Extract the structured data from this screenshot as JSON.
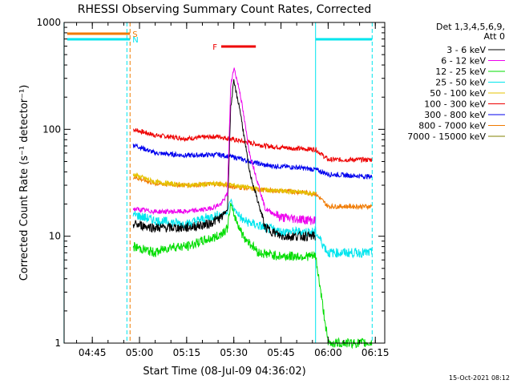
{
  "chart_data": {
    "type": "line",
    "title": "RHESSI Observing Summary Count Rates, Corrected",
    "xlabel": "Start Time (08-Jul-09 04:36:02)",
    "ylabel": "Corrected Count Rate (s⁻¹ detector⁻¹)",
    "y_scale": "log",
    "ylim": [
      1,
      1000
    ],
    "xlim": [
      "04:36:02",
      "06:18:00"
    ],
    "x_ticks": [
      "04:45",
      "05:00",
      "05:15",
      "05:30",
      "05:45",
      "06:00",
      "06:15"
    ],
    "y_ticks": [
      "1",
      "10",
      "100",
      "1000"
    ],
    "legend": {
      "placement": "top-right",
      "header": [
        "Det 1,3,4,5,6,9,",
        "Att 0"
      ]
    },
    "timestamp": "15-Oct-2021 08:12",
    "flag_bars": [
      {
        "label": "S",
        "color": "#f07a00",
        "start": "04:37",
        "end": "04:57"
      },
      {
        "label": "N",
        "color": "#00e5ee",
        "start": "04:37",
        "end": "04:57"
      },
      {
        "label": "N",
        "color": "#00e5ee",
        "start": "05:56",
        "end": "06:14"
      },
      {
        "label": "F",
        "color": "#ee0000",
        "start": "05:26",
        "end": "05:37"
      }
    ],
    "night_markers": [
      {
        "time": "04:36",
        "color": "#00e5ee",
        "style": "solid"
      },
      {
        "time": "04:56",
        "color": "#00e5ee",
        "style": "dashed"
      },
      {
        "time": "05:56",
        "color": "#00e5ee",
        "style": "solid"
      },
      {
        "time": "06:14",
        "color": "#00e5ee",
        "style": "dashed"
      }
    ],
    "saa_markers": [
      {
        "time": "04:57",
        "color": "#f07a00",
        "style": "dashed"
      }
    ],
    "series": [
      {
        "name": "3 - 6 keV",
        "color": "#000000",
        "x": [
          "04:58",
          "05:05",
          "05:15",
          "05:22",
          "05:26",
          "05:28",
          "05:29",
          "05:30",
          "05:32",
          "05:35",
          "05:40",
          "05:45",
          "05:56",
          "05:58",
          "06:03"
        ],
        "y": [
          13,
          12,
          12,
          13,
          15,
          18,
          160,
          280,
          150,
          40,
          12,
          10,
          10,
          null,
          null
        ]
      },
      {
        "name": "6 - 12 keV",
        "color": "#ee00ee",
        "x": [
          "04:58",
          "05:05",
          "05:15",
          "05:22",
          "05:26",
          "05:28",
          "05:29",
          "05:30",
          "05:32",
          "05:35",
          "05:40",
          "05:45",
          "05:56",
          "05:58",
          "06:03"
        ],
        "y": [
          18,
          17,
          17,
          18,
          20,
          25,
          250,
          380,
          220,
          60,
          18,
          15,
          14,
          null,
          null
        ]
      },
      {
        "name": "12 - 25 keV",
        "color": "#00dd00",
        "x": [
          "04:58",
          "05:05",
          "05:10",
          "05:15",
          "05:20",
          "05:25",
          "05:28",
          "05:29",
          "05:30",
          "05:33",
          "05:38",
          "05:45",
          "05:56",
          "06:00",
          "06:14"
        ],
        "y": [
          8,
          7,
          8,
          8,
          9,
          10,
          12,
          20,
          16,
          10,
          7,
          6.5,
          6.5,
          1,
          1
        ]
      },
      {
        "name": "25 - 50 keV",
        "color": "#00e5ee",
        "x": [
          "04:58",
          "05:05",
          "05:15",
          "05:22",
          "05:26",
          "05:28",
          "05:29",
          "05:30",
          "05:33",
          "05:40",
          "05:45",
          "05:56",
          "06:00",
          "06:14"
        ],
        "y": [
          16,
          14,
          13,
          15,
          16,
          17,
          22,
          18,
          14,
          12,
          11,
          11,
          7,
          7
        ]
      },
      {
        "name": "50 - 100 keV",
        "color": "#e5c300",
        "x": [
          "04:58",
          "05:05",
          "05:15",
          "05:25",
          "05:30",
          "05:40",
          "05:50",
          "05:56",
          "06:00",
          "06:14"
        ],
        "y": [
          38,
          32,
          30,
          31,
          30,
          27,
          26,
          25,
          null,
          null
        ]
      },
      {
        "name": "100 - 300 keV",
        "color": "#ee0000",
        "x": [
          "04:58",
          "05:05",
          "05:15",
          "05:25",
          "05:30",
          "05:40",
          "05:50",
          "05:56",
          "06:00",
          "06:14"
        ],
        "y": [
          100,
          88,
          82,
          86,
          80,
          70,
          66,
          65,
          52,
          52
        ]
      },
      {
        "name": "300 - 800 keV",
        "color": "#0000ee",
        "x": [
          "04:58",
          "05:05",
          "05:15",
          "05:25",
          "05:30",
          "05:40",
          "05:50",
          "05:56",
          "06:00",
          "06:14"
        ],
        "y": [
          72,
          60,
          57,
          58,
          55,
          46,
          44,
          42,
          38,
          36
        ]
      },
      {
        "name": "800 - 7000 keV",
        "color": "#f07a00",
        "x": [
          "04:58",
          "05:05",
          "05:15",
          "05:25",
          "05:30",
          "05:40",
          "05:50",
          "05:56",
          "06:00",
          "06:14"
        ],
        "y": [
          36,
          31,
          30,
          31,
          29,
          27,
          26,
          25,
          19,
          19
        ]
      },
      {
        "name": "7000 - 15000 keV",
        "color": "#808000",
        "x": [
          "04:58",
          "05:05",
          "05:15",
          "05:25",
          "05:30",
          "05:40",
          "05:50",
          "05:56",
          "06:00",
          "06:14"
        ],
        "y": [
          null,
          null,
          null,
          null,
          null,
          null,
          null,
          null,
          null,
          null
        ]
      }
    ]
  }
}
